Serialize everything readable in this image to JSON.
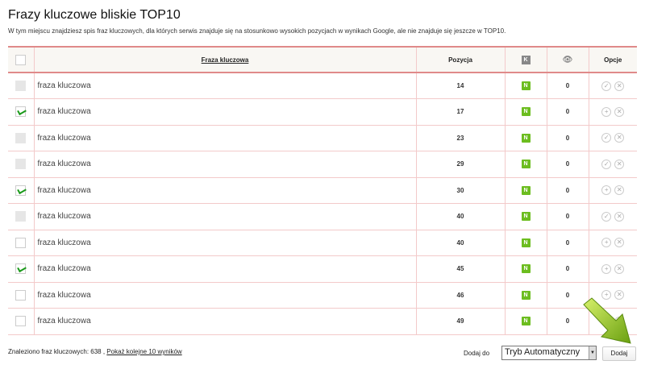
{
  "title": "Frazy kluczowe bliskie TOP10",
  "description": "W tym miejscu znajdziesz spis fraz kluczowych, dla których serwis znajduje się na stosunkowo wysokich pozycjach w wynikach Google, ale nie znajduje się jeszcze w TOP10.",
  "table": {
    "headers": {
      "phrase": "Fraza kluczowa",
      "position": "Pozycja",
      "k_icon": "K",
      "eye_icon": "eye-icon",
      "options": "Opcje"
    },
    "rows": [
      {
        "checkbox": "disabled",
        "phrase": "fraza kluczowa",
        "position": "14",
        "badge": "N",
        "views": "0",
        "action": "check"
      },
      {
        "checkbox": "checked",
        "phrase": "fraza kluczowa",
        "position": "17",
        "badge": "N",
        "views": "0",
        "action": "add"
      },
      {
        "checkbox": "disabled",
        "phrase": "fraza kluczowa",
        "position": "23",
        "badge": "N",
        "views": "0",
        "action": "check"
      },
      {
        "checkbox": "disabled",
        "phrase": "fraza kluczowa",
        "position": "29",
        "badge": "N",
        "views": "0",
        "action": "check"
      },
      {
        "checkbox": "checked",
        "phrase": "fraza kluczowa",
        "position": "30",
        "badge": "N",
        "views": "0",
        "action": "add"
      },
      {
        "checkbox": "disabled",
        "phrase": "fraza kluczowa",
        "position": "40",
        "badge": "N",
        "views": "0",
        "action": "check"
      },
      {
        "checkbox": "unchecked",
        "phrase": "fraza kluczowa",
        "position": "40",
        "badge": "N",
        "views": "0",
        "action": "add"
      },
      {
        "checkbox": "checked",
        "phrase": "fraza kluczowa",
        "position": "45",
        "badge": "N",
        "views": "0",
        "action": "add"
      },
      {
        "checkbox": "unchecked",
        "phrase": "fraza kluczowa",
        "position": "46",
        "badge": "N",
        "views": "0",
        "action": "add"
      },
      {
        "checkbox": "unchecked",
        "phrase": "fraza kluczowa",
        "position": "49",
        "badge": "N",
        "views": "0",
        "action": "add"
      }
    ]
  },
  "footer": {
    "found_text": "Znaleziono fraz kluczowych: 638 ,",
    "more_link": "Pokaż kolejne 10 wyników",
    "add_to_label": "Dodaj do",
    "select_value": "Tryb Automatyczny",
    "add_button": "Dodaj"
  },
  "colors": {
    "accent_border": "#e08a8a",
    "badge_green": "#6cbd1f",
    "check_green": "#1a9a1a"
  }
}
